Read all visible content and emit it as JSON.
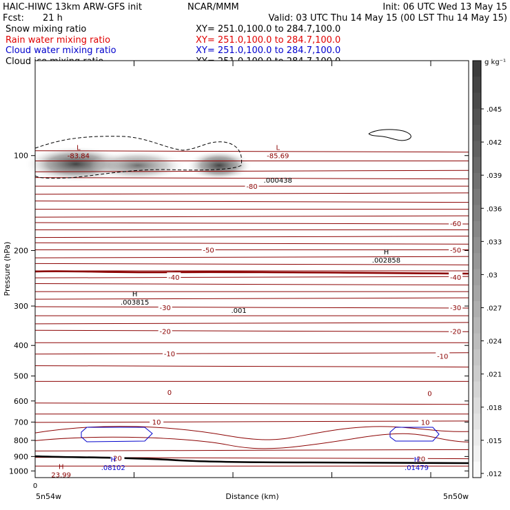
{
  "header": {
    "title": "HAIC-HIWC 13km ARW-GFS init",
    "center": "NCAR/MMM",
    "init": "Init: 06 UTC Wed 13 May 15",
    "fcst_label": "Fcst:",
    "fcst_value": "21 h",
    "valid": "Valid: 03 UTC Thu 14 May 15 (00 LST Thu 14 May 15)",
    "fields": [
      {
        "name": "Snow mixing ratio",
        "xy": "XY= 251.0,100.0 to 284.7,100.0",
        "color": "#000000"
      },
      {
        "name": "Rain water mixing ratio",
        "xy": "XY= 251.0,100.0 to 284.7,100.0",
        "color": "#e00000"
      },
      {
        "name": "Cloud water mixing ratio",
        "xy": "XY= 251.0,100.0 to 284.7,100.0",
        "color": "#0000cc"
      },
      {
        "name": "Cloud ice mixing ratio",
        "xy": "XY= 251.0,100.0 to 284.7,100.0",
        "color": "#000000"
      }
    ]
  },
  "chart_data": {
    "type": "cross-section contour",
    "ylabel": "Pressure (hPa)",
    "xlabel": "Distance (km)",
    "x_left_label": "5n54w",
    "x_right_label": "5n50w",
    "x_tick_label": "0",
    "y_ticks": [
      100,
      200,
      300,
      400,
      500,
      600,
      700,
      800,
      900,
      1000
    ],
    "ylim": [
      1050,
      50
    ],
    "y_scale": "log-pressure",
    "temperature_labels": [
      {
        "text": "-80",
        "p": 125,
        "x": 0.5
      },
      {
        "text": "-60",
        "p": 164,
        "x": 0.97
      },
      {
        "text": "-50",
        "p": 199,
        "x": 0.4
      },
      {
        "text": "-50",
        "p": 199,
        "x": 0.97
      },
      {
        "text": "-40",
        "p": 243,
        "x": 0.32
      },
      {
        "text": "-40",
        "p": 243,
        "x": 0.97
      },
      {
        "text": "-30",
        "p": 303,
        "x": 0.3
      },
      {
        "text": "-30",
        "p": 303,
        "x": 0.97
      },
      {
        "text": "-20",
        "p": 360,
        "x": 0.3
      },
      {
        "text": "-20",
        "p": 360,
        "x": 0.97
      },
      {
        "text": "-10",
        "p": 424,
        "x": 0.31
      },
      {
        "text": "-10",
        "p": 432,
        "x": 0.94
      },
      {
        "text": "0",
        "p": 562,
        "x": 0.31
      },
      {
        "text": "0",
        "p": 567,
        "x": 0.91
      },
      {
        "text": "10",
        "p": 698,
        "x": 0.28
      },
      {
        "text": "10",
        "p": 700,
        "x": 0.9
      },
      {
        "text": "20",
        "p": 910,
        "x": 0.19
      },
      {
        "text": "20",
        "p": 914,
        "x": 0.89
      }
    ],
    "extrema": [
      {
        "kind": "L",
        "value": "-83.84",
        "p": 98,
        "x": 0.1,
        "color": "#8b0000"
      },
      {
        "kind": "L",
        "value": "-85.69",
        "p": 98,
        "x": 0.56,
        "color": "#8b0000"
      },
      {
        "kind": "",
        "value": ".000438",
        "p": 117,
        "x": 0.56,
        "color": "#000000"
      },
      {
        "kind": "H",
        "value": ".002858",
        "p": 210,
        "x": 0.81,
        "color": "#000000"
      },
      {
        "kind": "H",
        "value": ".003815",
        "p": 285,
        "x": 0.23,
        "color": "#000000"
      },
      {
        "kind": "",
        "value": ".001",
        "p": 303,
        "x": 0.47,
        "color": "#000000"
      },
      {
        "kind": "H",
        "value": ".08102",
        "p": 955,
        "x": 0.18,
        "color": "#0000cc"
      },
      {
        "kind": "H",
        "value": ".01479",
        "p": 955,
        "x": 0.88,
        "color": "#0000cc"
      },
      {
        "kind": "H",
        "value": "23.99",
        "p": 1005,
        "x": 0.06,
        "color": "#8b0000"
      }
    ],
    "colorbar": {
      "unit": "g kg⁻¹",
      "ticks": [
        ".045",
        ".042",
        ".039",
        ".036",
        ".033",
        ".03",
        ".027",
        ".024",
        ".021",
        ".018",
        ".015",
        ".012"
      ]
    }
  }
}
